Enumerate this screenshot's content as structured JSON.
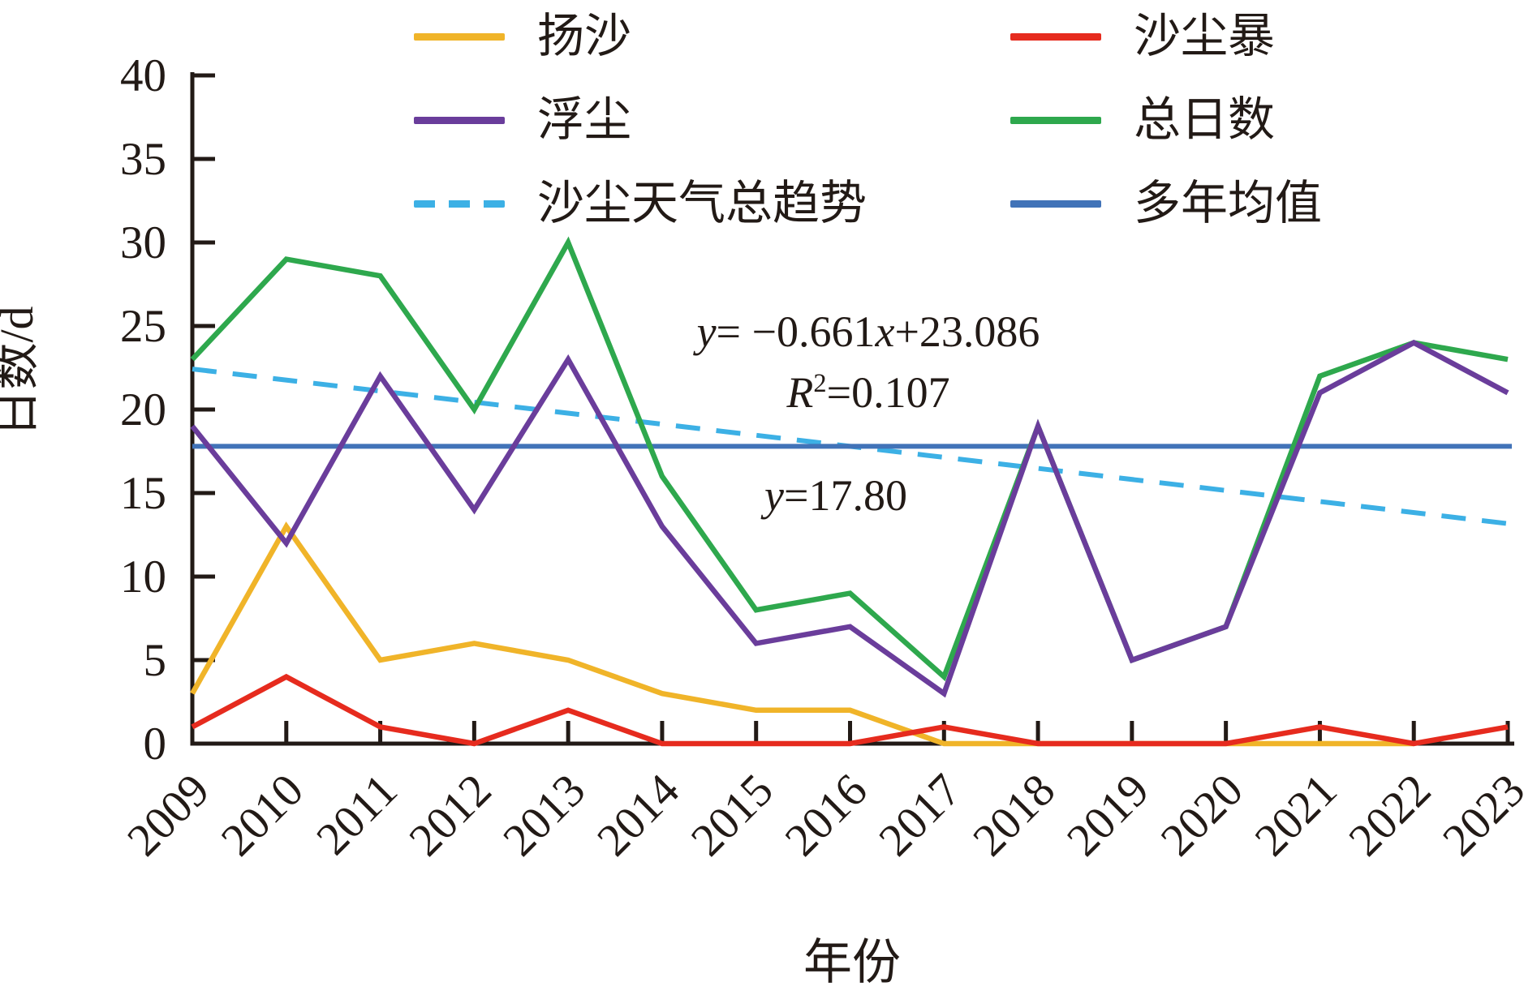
{
  "chart_data": {
    "type": "line",
    "xlabel": "年份",
    "ylabel": "日数/d",
    "x": [
      "2009",
      "2010",
      "2011",
      "2012",
      "2013",
      "2014",
      "2015",
      "2016",
      "2017",
      "2018",
      "2019",
      "2020",
      "2021",
      "2022",
      "2023"
    ],
    "ylim": [
      0,
      40
    ],
    "yticks": [
      0,
      5,
      10,
      15,
      20,
      25,
      30,
      35,
      40
    ],
    "grid": false,
    "legend_position": "top",
    "series": [
      {
        "name": "扬沙",
        "color": "#F0B429",
        "dashed": false,
        "values": [
          3,
          13,
          5,
          6,
          5,
          3,
          2,
          2,
          0,
          0,
          0,
          0,
          0,
          0,
          null
        ]
      },
      {
        "name": "沙尘暴",
        "color": "#E62B1E",
        "dashed": false,
        "values": [
          1,
          4,
          1,
          0,
          2,
          0,
          0,
          0,
          1,
          0,
          0,
          0,
          1,
          0,
          1
        ]
      },
      {
        "name": "总日数",
        "color": "#2EA84D",
        "dashed": false,
        "values": [
          23,
          29,
          28,
          20,
          30,
          16,
          8,
          9,
          4,
          19,
          5,
          7,
          22,
          24,
          23
        ]
      },
      {
        "name": "浮尘",
        "color": "#6A3D9B",
        "dashed": false,
        "values": [
          19,
          12,
          22,
          14,
          23,
          13,
          6,
          7,
          3,
          19,
          5,
          7,
          21,
          24,
          21
        ]
      }
    ],
    "trend_line": {
      "name": "沙尘天气总趋势",
      "color": "#3CB0E5",
      "dashed": true,
      "slope": -0.661,
      "intercept": 23.086
    },
    "mean_line": {
      "name": "多年均值",
      "color": "#4173B8",
      "value": 17.8
    }
  },
  "legend": {
    "items": [
      {
        "label": "扬沙",
        "color": "#F0B429",
        "dashed": false
      },
      {
        "label": "沙尘暴",
        "color": "#E62B1E",
        "dashed": false
      },
      {
        "label": "浮尘",
        "color": "#6A3D9B",
        "dashed": false
      },
      {
        "label": "总日数",
        "color": "#2EA84D",
        "dashed": false
      },
      {
        "label": "沙尘天气总趋势",
        "color": "#3CB0E5",
        "dashed": true
      },
      {
        "label": "多年均值",
        "color": "#4173B8",
        "dashed": false
      }
    ]
  },
  "annotations": {
    "trend_eq": {
      "y": "y",
      "part1": "= −0.661",
      "x": "x",
      "part2": "+23.086"
    },
    "r_squared": {
      "R": "R",
      "sup": "2",
      "rest": "=0.107"
    },
    "mean_label": {
      "y": "y",
      "rest": "=17.80"
    }
  },
  "axes": {
    "x_title": "年份",
    "y_title": "日数/d"
  }
}
